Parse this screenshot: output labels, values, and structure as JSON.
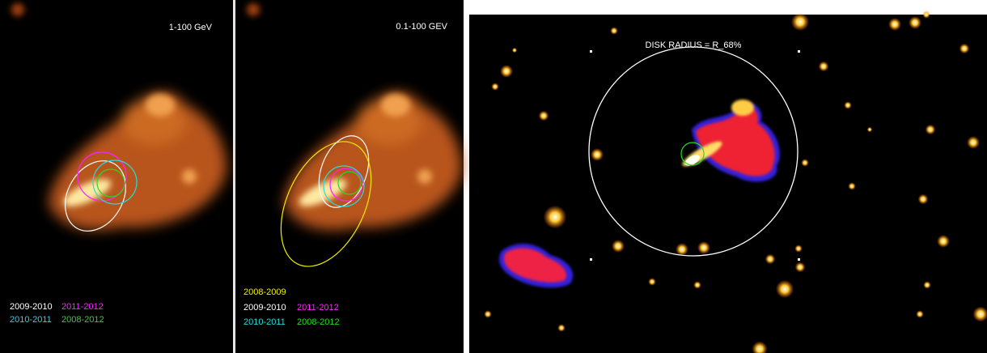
{
  "panels": [
    {
      "label": "1-100 GeV",
      "legend": [
        {
          "text": "2009-2010",
          "color": "#ffffff"
        },
        {
          "text": "2011-2012",
          "color": "#ff22ff"
        },
        {
          "text": "2010-2011",
          "color": "#22dddd"
        },
        {
          "text": "2008-2012",
          "color": "#22dd22"
        }
      ]
    },
    {
      "label": "0.1-100 GEV",
      "legend": [
        {
          "text": "2008-2009",
          "color": "#eeee00"
        },
        {
          "text": "2009-2010",
          "color": "#ffffff"
        },
        {
          "text": "2011-2012",
          "color": "#ff22ff"
        },
        {
          "text": "2010-2011",
          "color": "#22dddd"
        },
        {
          "text": "2008-2012",
          "color": "#22dd22"
        }
      ]
    },
    {
      "label": "DISK RADIUS = R_68%"
    }
  ]
}
